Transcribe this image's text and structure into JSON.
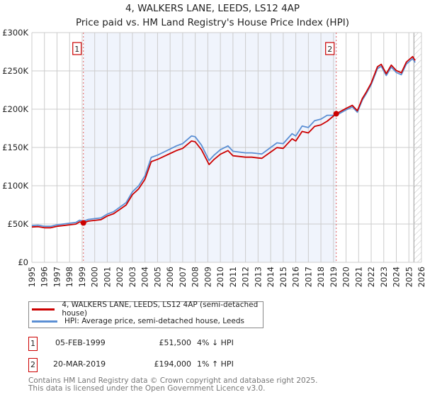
{
  "title": "4, WALKERS LANE, LEEDS, LS12 4AP",
  "subtitle": "Price paid vs. HM Land Registry's House Price Index (HPI)",
  "chart_data": {
    "type": "line",
    "title": "4, WALKERS LANE, LEEDS, LS12 4AP",
    "subtitle": "Price paid vs. HM Land Registry's House Price Index (HPI)",
    "xlim": [
      1995,
      2026
    ],
    "ylim": [
      0,
      300000
    ],
    "x_ticks": [
      "1995",
      "1996",
      "1997",
      "1998",
      "1999",
      "2000",
      "2001",
      "2002",
      "2003",
      "2004",
      "2005",
      "2006",
      "2007",
      "2008",
      "2009",
      "2010",
      "2011",
      "2012",
      "2013",
      "2014",
      "2015",
      "2016",
      "2017",
      "2018",
      "2019",
      "2020",
      "2021",
      "2022",
      "2023",
      "2024",
      "2025",
      "2026"
    ],
    "y_ticks": [
      {
        "v": 0,
        "label": "£0"
      },
      {
        "v": 50000,
        "label": "£50K"
      },
      {
        "v": 100000,
        "label": "£100K"
      },
      {
        "v": 150000,
        "label": "£150K"
      },
      {
        "v": 200000,
        "label": "£200K"
      },
      {
        "v": 250000,
        "label": "£250K"
      },
      {
        "v": 300000,
        "label": "£300K"
      }
    ],
    "grid": true,
    "shaded_range": [
      1999.1,
      2019.22
    ],
    "forecast_hatch_from": 2025.4,
    "x": [
      1995.0,
      1995.5,
      1996.0,
      1996.5,
      1997.0,
      1997.5,
      1998.0,
      1998.5,
      1998.8,
      1999.1,
      1999.5,
      2000.0,
      2000.5,
      2001.0,
      2001.5,
      2002.0,
      2002.5,
      2003.0,
      2003.5,
      2004.0,
      2004.5,
      2005.0,
      2005.5,
      2006.0,
      2006.5,
      2007.0,
      2007.7,
      2008.0,
      2008.5,
      2009.1,
      2009.5,
      2010.0,
      2010.6,
      2011.0,
      2011.5,
      2012.0,
      2012.5,
      2013.0,
      2013.3,
      2014.0,
      2014.5,
      2015.0,
      2015.7,
      2016.0,
      2016.5,
      2017.0,
      2017.5,
      2018.0,
      2018.5,
      2019.22,
      2020.0,
      2020.5,
      2020.9,
      2021.3,
      2021.6,
      2022.0,
      2022.5,
      2022.8,
      2023.2,
      2023.6,
      2024.0,
      2024.4,
      2024.8,
      2025.3,
      2025.5
    ],
    "series": [
      {
        "name": "4, WALKERS LANE, LEEDS, LS12 4AP (semi-detached house)",
        "color": "#cc0000",
        "values": [
          46100,
          46600,
          45100,
          45100,
          47000,
          48000,
          49000,
          49900,
          52800,
          51500,
          53800,
          54700,
          55700,
          60500,
          63400,
          69100,
          74900,
          88300,
          96000,
          108500,
          131500,
          134400,
          138200,
          142100,
          145900,
          148800,
          158400,
          157400,
          146900,
          127700,
          134400,
          141100,
          145900,
          139200,
          138200,
          137300,
          137300,
          136300,
          135800,
          144000,
          149800,
          148800,
          161300,
          158400,
          170900,
          169000,
          177600,
          179500,
          184300,
          194000,
          201000,
          205000,
          198000,
          214000,
          222000,
          234000,
          255500,
          258600,
          246400,
          257600,
          250500,
          247500,
          261600,
          268700,
          263600
        ]
      },
      {
        "name": "HPI: Average price, semi-detached house, Leeds",
        "color": "#5b8fd4",
        "values": [
          48000,
          48500,
          47000,
          47000,
          49000,
          50000,
          51000,
          52000,
          55000,
          53600,
          56000,
          57000,
          58000,
          63000,
          66000,
          72000,
          78000,
          92000,
          100000,
          113000,
          137000,
          140000,
          144000,
          148000,
          152000,
          155000,
          165000,
          164000,
          153000,
          133000,
          140000,
          147000,
          152000,
          145000,
          144000,
          143000,
          143000,
          142000,
          141500,
          150000,
          156000,
          155000,
          168000,
          165000,
          178000,
          176000,
          185000,
          187000,
          192000,
          192000,
          199000,
          203000,
          196000,
          212000,
          220000,
          232000,
          253000,
          256000,
          244000,
          255000,
          248000,
          245000,
          259000,
          266000,
          261000
        ]
      }
    ],
    "sales": [
      {
        "id": "1",
        "x": 1999.1,
        "price": 51500,
        "date": "05-FEB-1999",
        "price_label": "£51,500",
        "hpi_diff": "4% ↓ HPI"
      },
      {
        "id": "2",
        "x": 2019.22,
        "price": 194000,
        "date": "20-MAR-2019",
        "price_label": "£194,000",
        "hpi_diff": "1% ↑ HPI"
      }
    ]
  },
  "legend": {
    "property": "4, WALKERS LANE, LEEDS, LS12 4AP (semi-detached house)",
    "hpi": "HPI: Average price, semi-detached house, Leeds"
  },
  "footer": {
    "line1": "Contains HM Land Registry data © Crown copyright and database right 2025.",
    "line2": "This data is licensed under the Open Government Licence v3.0."
  }
}
